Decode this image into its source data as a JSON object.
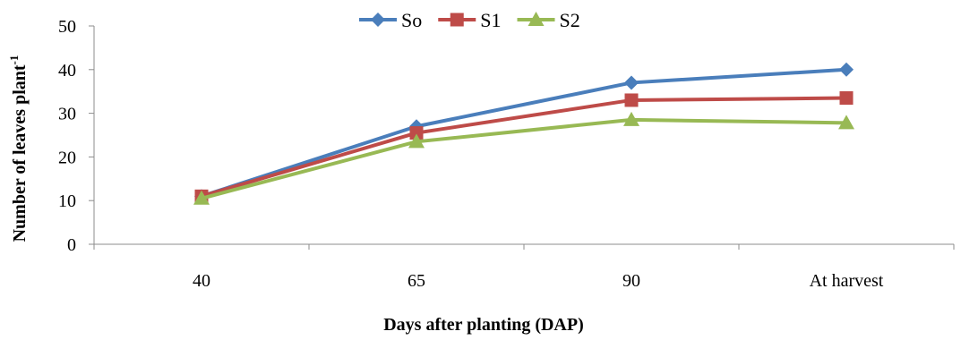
{
  "chart_data": {
    "type": "line",
    "title": "",
    "xlabel": "Days after planting (DAP)",
    "ylabel_main": "Number of leaves plant",
    "ylabel_sup": "-1",
    "categories": [
      "40",
      "65",
      "90",
      "At harvest"
    ],
    "ylim": [
      0,
      50
    ],
    "yticks": [
      0,
      10,
      20,
      30,
      40,
      50
    ],
    "grid": false,
    "legend_position": "top-center",
    "series": [
      {
        "name_main": "S",
        "name_sub": "o",
        "color": "#4a7ebb",
        "marker": "diamond",
        "values": [
          11,
          27,
          37,
          40
        ]
      },
      {
        "name_main": "S",
        "name_sub": "1",
        "color": "#be4b48",
        "marker": "square",
        "values": [
          11,
          25.5,
          33,
          33.5
        ]
      },
      {
        "name_main": "S",
        "name_sub": "2",
        "color": "#98b954",
        "marker": "triangle",
        "values": [
          10.5,
          23.5,
          28.5,
          27.8
        ]
      }
    ]
  }
}
